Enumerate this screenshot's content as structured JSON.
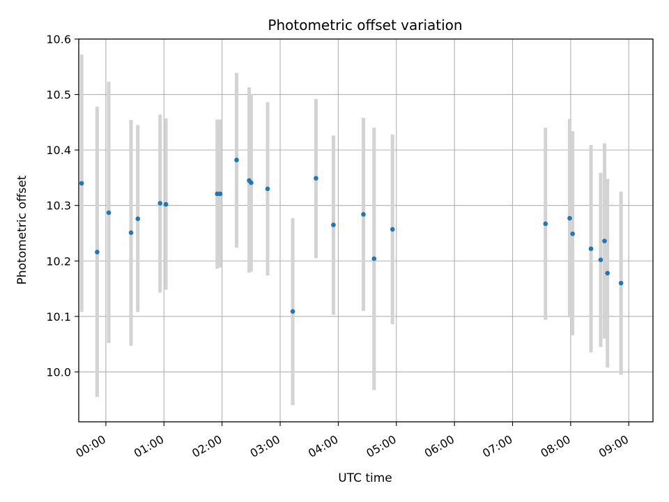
{
  "chart_data": {
    "type": "scatter",
    "title": "Photometric offset variation",
    "xlabel": "UTC time",
    "ylabel": "Photometric offset",
    "x_unit": "UTC time (HH:MM)",
    "xlim": [
      "23:32",
      "09:25"
    ],
    "ylim": [
      9.91,
      10.6
    ],
    "grid": true,
    "x_ticks": [
      "00:00",
      "01:00",
      "02:00",
      "03:00",
      "04:00",
      "05:00",
      "06:00",
      "07:00",
      "08:00",
      "09:00"
    ],
    "y_ticks": [
      "10.0",
      "10.1",
      "10.2",
      "10.3",
      "10.4",
      "10.5",
      "10.6"
    ],
    "colors": {
      "marker": "#1f77b4",
      "errorbar": "#d3d3d3",
      "grid": "#b0b0b0"
    },
    "points": [
      {
        "x": "23:35",
        "y": 10.34,
        "lo": 10.108,
        "hi": 10.572
      },
      {
        "x": "23:51",
        "y": 10.216,
        "lo": 9.955,
        "hi": 10.478
      },
      {
        "x": "00:03",
        "y": 10.287,
        "lo": 10.052,
        "hi": 10.523
      },
      {
        "x": "00:26",
        "y": 10.251,
        "lo": 10.047,
        "hi": 10.454
      },
      {
        "x": "00:33",
        "y": 10.276,
        "lo": 10.108,
        "hi": 10.445
      },
      {
        "x": "00:56",
        "y": 10.304,
        "lo": 10.143,
        "hi": 10.464
      },
      {
        "x": "01:02",
        "y": 10.302,
        "lo": 10.148,
        "hi": 10.457
      },
      {
        "x": "01:55",
        "y": 10.321,
        "lo": 10.186,
        "hi": 10.455
      },
      {
        "x": "01:58",
        "y": 10.321,
        "lo": 10.188,
        "hi": 10.455
      },
      {
        "x": "02:15",
        "y": 10.382,
        "lo": 10.224,
        "hi": 10.539
      },
      {
        "x": "02:28",
        "y": 10.345,
        "lo": 10.179,
        "hi": 10.513
      },
      {
        "x": "02:30",
        "y": 10.341,
        "lo": 10.181,
        "hi": 10.501
      },
      {
        "x": "02:47",
        "y": 10.33,
        "lo": 10.174,
        "hi": 10.486
      },
      {
        "x": "03:13",
        "y": 10.109,
        "lo": 9.94,
        "hi": 10.277
      },
      {
        "x": "03:37",
        "y": 10.349,
        "lo": 10.205,
        "hi": 10.492
      },
      {
        "x": "03:55",
        "y": 10.265,
        "lo": 10.103,
        "hi": 10.426
      },
      {
        "x": "04:26",
        "y": 10.284,
        "lo": 10.11,
        "hi": 10.458
      },
      {
        "x": "04:37",
        "y": 10.204,
        "lo": 9.967,
        "hi": 10.44
      },
      {
        "x": "04:56",
        "y": 10.257,
        "lo": 10.086,
        "hi": 10.428
      },
      {
        "x": "07:34",
        "y": 10.267,
        "lo": 10.094,
        "hi": 10.44
      },
      {
        "x": "07:59",
        "y": 10.277,
        "lo": 10.098,
        "hi": 10.456
      },
      {
        "x": "08:02",
        "y": 10.249,
        "lo": 10.066,
        "hi": 10.434
      },
      {
        "x": "08:21",
        "y": 10.222,
        "lo": 10.035,
        "hi": 10.409
      },
      {
        "x": "08:31",
        "y": 10.202,
        "lo": 10.045,
        "hi": 10.359
      },
      {
        "x": "08:35",
        "y": 10.236,
        "lo": 10.06,
        "hi": 10.412
      },
      {
        "x": "08:38",
        "y": 10.178,
        "lo": 10.008,
        "hi": 10.348
      },
      {
        "x": "08:52",
        "y": 10.16,
        "lo": 9.995,
        "hi": 10.325
      }
    ]
  }
}
